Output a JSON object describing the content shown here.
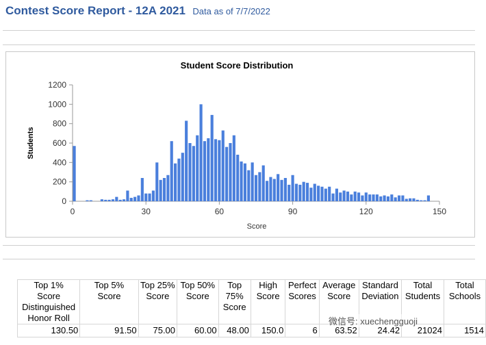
{
  "header": {
    "title": "Contest Score Report -  12A 2021",
    "as_of": "Data as of 7/7/2022"
  },
  "chart_data": {
    "type": "bar",
    "title": "Student Score Distribution",
    "xlabel": "Score",
    "ylabel": "Students",
    "xlim": [
      0,
      150
    ],
    "ylim": [
      0,
      1200
    ],
    "x_ticks": [
      0,
      30,
      60,
      90,
      120,
      150
    ],
    "y_ticks": [
      0,
      200,
      400,
      600,
      800,
      1000,
      1200
    ],
    "color": "#4a7fdc",
    "grid": false,
    "x": [
      0,
      6,
      7.5,
      12,
      13.5,
      15,
      16.5,
      18,
      19.5,
      21,
      22.5,
      24,
      25.5,
      27,
      28.5,
      30,
      31.5,
      33,
      34.5,
      36,
      37.5,
      39,
      40.5,
      42,
      43.5,
      45,
      46.5,
      48,
      49.5,
      51,
      52.5,
      54,
      55.5,
      57,
      58.5,
      60,
      61.5,
      63,
      64.5,
      66,
      67.5,
      69,
      70.5,
      72,
      73.5,
      75,
      76.5,
      78,
      79.5,
      81,
      82.5,
      84,
      85.5,
      87,
      88.5,
      90,
      91.5,
      93,
      94.5,
      96,
      97.5,
      99,
      100.5,
      102,
      103.5,
      105,
      106.5,
      108,
      109.5,
      111,
      112.5,
      114,
      115.5,
      117,
      118.5,
      120,
      121.5,
      123,
      124.5,
      126,
      127.5,
      129,
      130.5,
      132,
      133.5,
      135,
      136.5,
      138,
      139.5,
      141,
      142.5,
      144,
      145.5
    ],
    "values": [
      570,
      10,
      10,
      20,
      15,
      15,
      20,
      45,
      15,
      20,
      110,
      35,
      45,
      60,
      240,
      80,
      80,
      110,
      400,
      220,
      240,
      270,
      620,
      390,
      440,
      500,
      830,
      600,
      570,
      680,
      1000,
      620,
      650,
      890,
      640,
      630,
      730,
      560,
      600,
      680,
      480,
      410,
      390,
      320,
      400,
      270,
      300,
      370,
      210,
      250,
      230,
      280,
      220,
      240,
      170,
      270,
      180,
      170,
      200,
      190,
      140,
      180,
      160,
      150,
      130,
      150,
      80,
      130,
      90,
      110,
      100,
      70,
      100,
      90,
      60,
      90,
      70,
      70,
      70,
      50,
      60,
      50,
      70,
      40,
      60,
      60,
      25,
      30,
      30,
      15,
      10,
      10,
      60
    ]
  },
  "stats_table": {
    "headers": [
      "Top 1% Score Distinguished Honor Roll",
      "Top 5% Score",
      "Top 25% Score",
      "Top 50% Score",
      "Top 75% Score",
      "High Score",
      "Perfect Scores",
      "Average Score",
      "Standard Deviation",
      "Total Students",
      "Total Schools"
    ],
    "values": [
      "130.50",
      "91.50",
      "75.00",
      "60.00",
      "48.00",
      "150.0",
      "6",
      "63.52",
      "24.42",
      "21024",
      "1514"
    ]
  },
  "watermark": "微信号: xuechengguoji"
}
